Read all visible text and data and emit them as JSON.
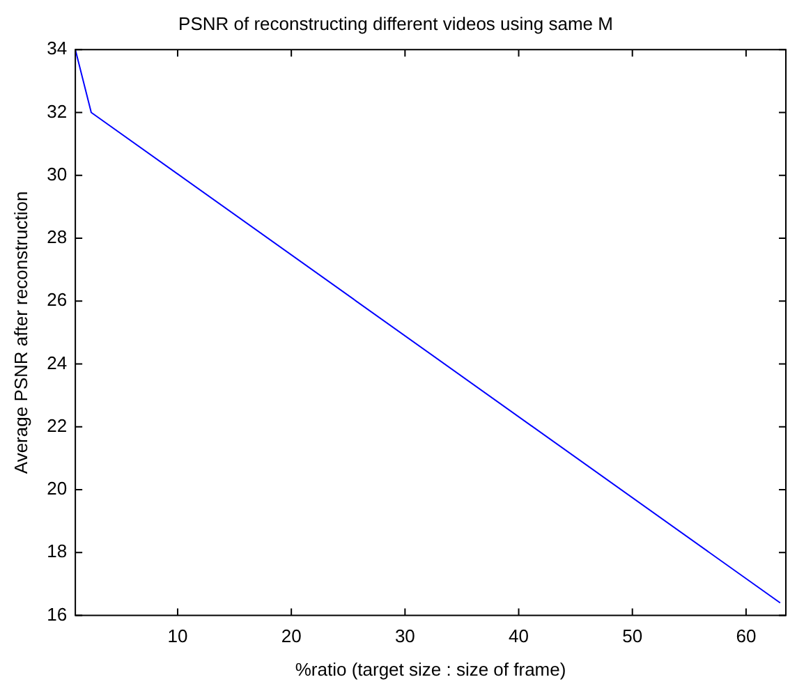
{
  "chart_data": {
    "type": "line",
    "title": "PSNR of reconstructing different videos using same M",
    "xlabel": "%ratio (target size : size of frame)",
    "ylabel": "Average PSNR after reconstruction",
    "series": [
      {
        "color": "#0000ff",
        "x": [
          1,
          2.4,
          63
        ],
        "values": [
          34,
          32,
          16.4
        ]
      }
    ],
    "xlim": [
      1,
      63.5
    ],
    "xticks": [
      10,
      20,
      30,
      40,
      50,
      60
    ],
    "ylim": [
      16,
      34
    ],
    "yticks": [
      16,
      18,
      20,
      22,
      24,
      26,
      28,
      30,
      32,
      34
    ],
    "grid": false,
    "legend": false,
    "marker": "none"
  }
}
